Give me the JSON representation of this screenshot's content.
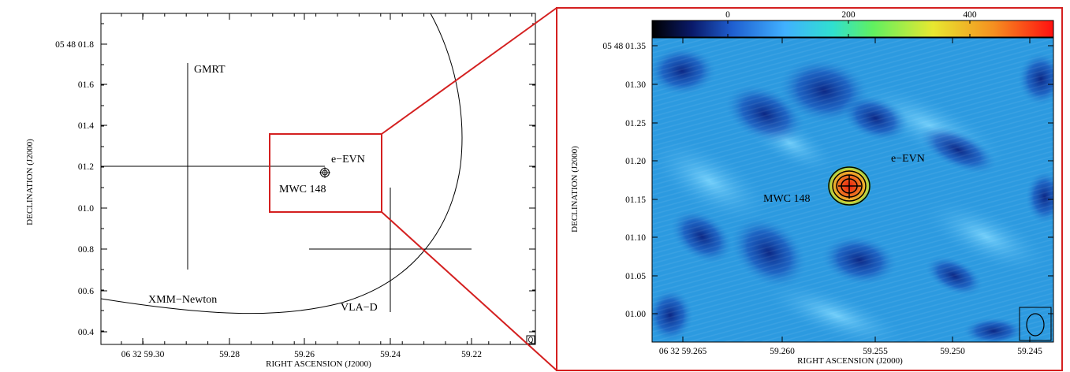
{
  "left_panel": {
    "xlabel": "RIGHT ASCENSION (J2000)",
    "ylabel": "DECLINATION (J2000)",
    "x_ticks": [
      "06 32 59.30",
      "59.28",
      "59.26",
      "59.24",
      "59.22"
    ],
    "y_ticks": [
      "05 48 01.8",
      "01.6",
      "01.4",
      "01.2",
      "01.0",
      "00.8",
      "00.6",
      "00.4"
    ],
    "labels": {
      "gmrt": "GMRT",
      "evn": "e−EVN",
      "mwc": "MWC 148",
      "xmm": "XMM−Newton",
      "vla": "VLA−D"
    }
  },
  "right_panel": {
    "xlabel": "RIGHT ASCENSION (J2000)",
    "ylabel": "DECLINATION (J2000)",
    "x_ticks": [
      "06 32 59.265",
      "59.260",
      "59.255",
      "59.250",
      "59.245"
    ],
    "y_ticks": [
      "05 48 01.35",
      "01.30",
      "01.25",
      "01.20",
      "01.15",
      "01.10",
      "01.05",
      "01.00"
    ],
    "colorbar_ticks": [
      "0",
      "200",
      "400"
    ],
    "labels": {
      "evn": "e−EVN",
      "mwc": "MWC 148"
    }
  },
  "colors": {
    "zoom_box": "#d42020",
    "map_base": "#2c9ae0",
    "map_dark": "#0c2a8a",
    "source_core": "#e84818"
  }
}
